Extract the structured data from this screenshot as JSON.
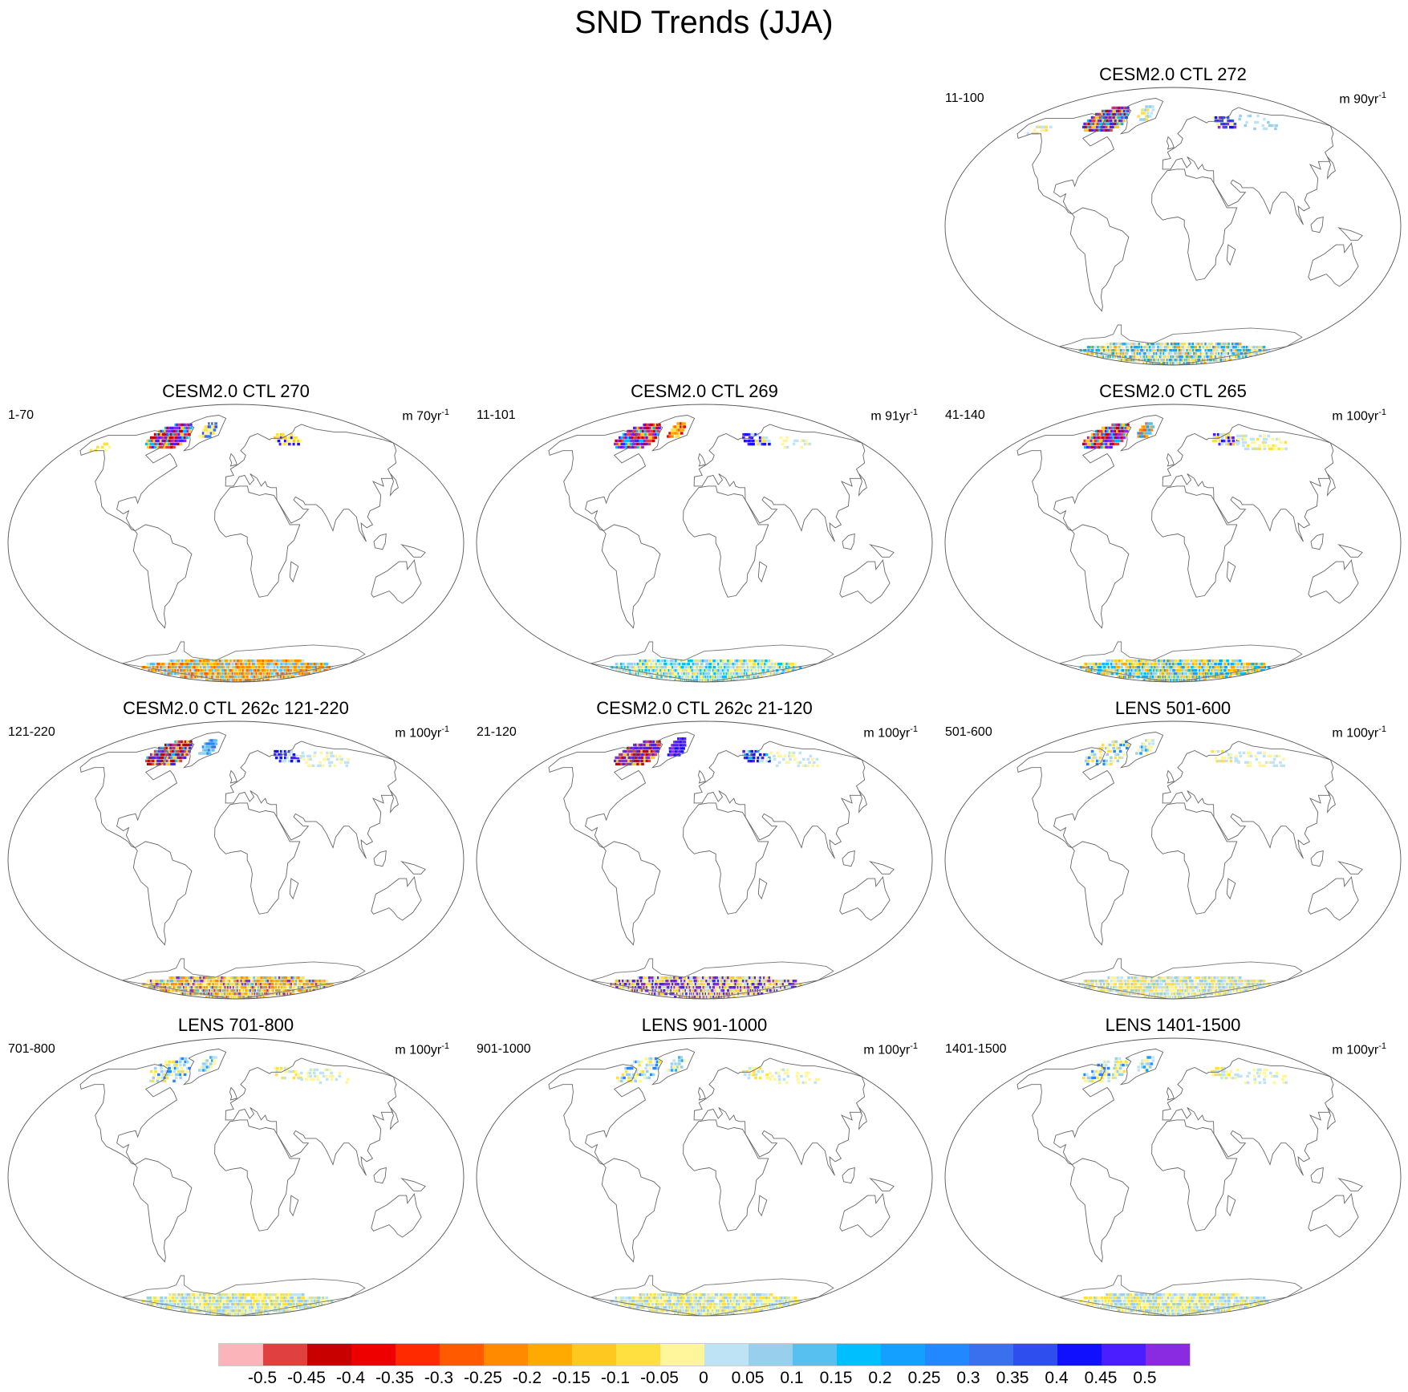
{
  "title": "SND Trends (JJA)",
  "panels": [
    {
      "title": "CESM2.0 CTL 272",
      "range_label": "11-100",
      "unit_prefix": "m",
      "unit_value": "90yr",
      "unit_exp": "-1",
      "pattern": "c272"
    },
    {
      "title": "CESM2.0 CTL 270",
      "range_label": "1-70",
      "unit_prefix": "m",
      "unit_value": "70yr",
      "unit_exp": "-1",
      "pattern": "c270"
    },
    {
      "title": "CESM2.0 CTL 269",
      "range_label": "11-101",
      "unit_prefix": "m",
      "unit_value": "91yr",
      "unit_exp": "-1",
      "pattern": "c269"
    },
    {
      "title": "CESM2.0 CTL 265",
      "range_label": "41-140",
      "unit_prefix": "m",
      "unit_value": "100yr",
      "unit_exp": "-1",
      "pattern": "c265"
    },
    {
      "title": "CESM2.0 CTL 262c 121-220",
      "range_label": "121-220",
      "unit_prefix": "m",
      "unit_value": "100yr",
      "unit_exp": "-1",
      "pattern": "c262a"
    },
    {
      "title": "CESM2.0 CTL 262c 21-120",
      "range_label": "21-120",
      "unit_prefix": "m",
      "unit_value": "100yr",
      "unit_exp": "-1",
      "pattern": "c262b"
    },
    {
      "title": "LENS 501-600",
      "range_label": "501-600",
      "unit_prefix": "m",
      "unit_value": "100yr",
      "unit_exp": "-1",
      "pattern": "lens"
    },
    {
      "title": "LENS 701-800",
      "range_label": "701-800",
      "unit_prefix": "m",
      "unit_value": "100yr",
      "unit_exp": "-1",
      "pattern": "lens"
    },
    {
      "title": "LENS 901-1000",
      "range_label": "901-1000",
      "unit_prefix": "m",
      "unit_value": "100yr",
      "unit_exp": "-1",
      "pattern": "lens"
    },
    {
      "title": "LENS 1401-1500",
      "range_label": "1401-1500",
      "unit_prefix": "m",
      "unit_value": "100yr",
      "unit_exp": "-1",
      "pattern": "lens"
    }
  ],
  "colorbar": {
    "colors": [
      "#fbb4b9",
      "#e04040",
      "#c80000",
      "#ee0000",
      "#ff2a00",
      "#ff5a00",
      "#ff8a00",
      "#ffaa00",
      "#ffc820",
      "#ffe040",
      "#fff59a",
      "#bee3f4",
      "#98cfec",
      "#58c0f0",
      "#00bfff",
      "#14a0ff",
      "#2188ff",
      "#3a70ee",
      "#2e4fee",
      "#1010ff",
      "#4a1eff",
      "#8a2be2"
    ],
    "labels": [
      "-0.5",
      "-0.45",
      "-0.4",
      "-0.35",
      "-0.3",
      "-0.25",
      "-0.2",
      "-0.15",
      "-0.1",
      "-0.05",
      "0",
      "0.05",
      "0.1",
      "0.15",
      "0.2",
      "0.25",
      "0.3",
      "0.35",
      "0.4",
      "0.45",
      "0.5"
    ]
  }
}
